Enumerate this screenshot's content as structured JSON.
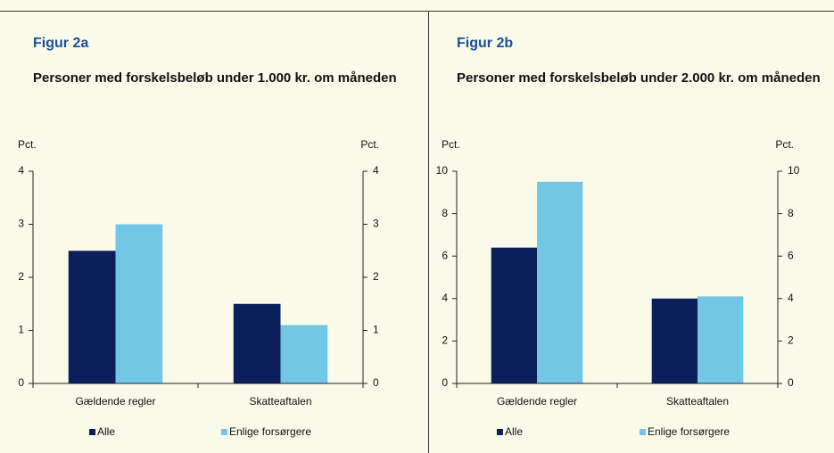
{
  "chart_data": [
    {
      "type": "bar",
      "label": "Figur 2a",
      "title": "Personer med forskelsbeløb under 1.000 kr. om måneden",
      "y_label": "Pct.",
      "y2_label": "Pct.",
      "categories": [
        "Gældende regler",
        "Skatteaftalen"
      ],
      "series": [
        {
          "name": "Alle",
          "color": "#0c1f5c",
          "values": [
            2.5,
            1.5
          ]
        },
        {
          "name": "Enlige forsørgere",
          "color": "#72c7e6",
          "values": [
            3.0,
            1.1
          ]
        }
      ],
      "ylim": [
        0,
        4
      ],
      "yticks": [
        0,
        1,
        2,
        3,
        4
      ],
      "y2lim": [
        0,
        4
      ],
      "y2ticks": [
        0,
        1,
        2,
        3,
        4
      ]
    },
    {
      "type": "bar",
      "label": "Figur 2b",
      "title": "Personer med forskelsbeløb under 2.000 kr. om måneden",
      "y_label": "Pct.",
      "y2_label": "Pct.",
      "categories": [
        "Gældende regler",
        "Skatteaftalen"
      ],
      "series": [
        {
          "name": "Alle",
          "color": "#0c1f5c",
          "values": [
            6.4,
            4.0
          ]
        },
        {
          "name": "Enlige forsørgere",
          "color": "#72c7e6",
          "values": [
            9.5,
            4.1
          ]
        }
      ],
      "ylim": [
        0,
        10
      ],
      "yticks": [
        0,
        2,
        4,
        6,
        8,
        10
      ],
      "y2lim": [
        0,
        10
      ],
      "y2ticks": [
        0,
        2,
        4,
        6,
        8,
        10
      ]
    }
  ]
}
